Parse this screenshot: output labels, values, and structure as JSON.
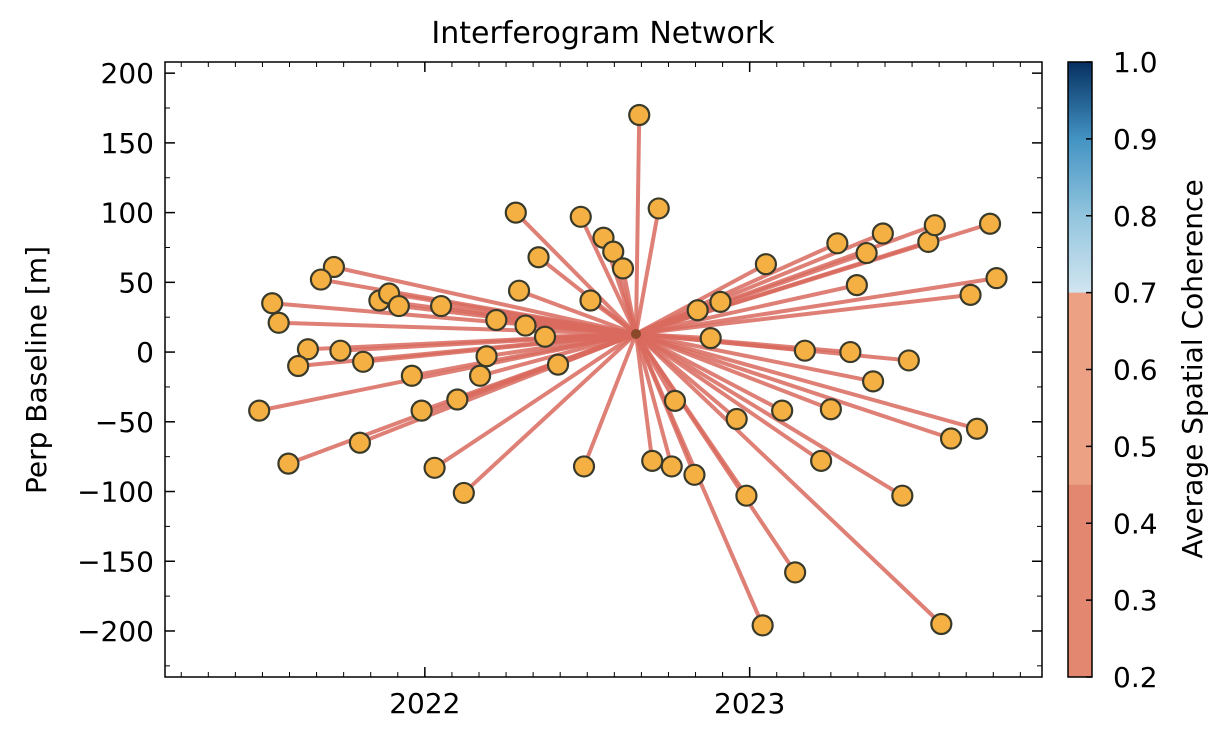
{
  "chart_data": {
    "type": "scatter",
    "title": "Interferogram Network",
    "xlabel": "",
    "ylabel": "Perp Baseline [m]",
    "x_ticks": [
      2022,
      2023
    ],
    "xlim": [
      2021.2,
      2023.9
    ],
    "y_ticks": [
      -200,
      -150,
      -100,
      -50,
      0,
      50,
      100,
      150,
      200
    ],
    "ylim": [
      -233,
      208
    ],
    "grid": false,
    "reference": {
      "x": 2022.65,
      "y": 13
    },
    "colorbar": {
      "label": "Average Spatial Coherence",
      "range": [
        0.2,
        1.0
      ],
      "ticks": [
        "0.2",
        "0.3",
        "0.4",
        "0.5",
        "0.6",
        "0.7",
        "0.8",
        "0.9",
        "1.0"
      ],
      "colormap": "RdBu",
      "masked_above": 0.7
    },
    "edge_color": "#d96a5e",
    "marker_color": "#f4b042",
    "marker_edge_color": "#3a3a2a",
    "points": [
      {
        "x": 2022.66,
        "y": 170
      },
      {
        "x": 2022.28,
        "y": 100
      },
      {
        "x": 2022.48,
        "y": 97
      },
      {
        "x": 2022.72,
        "y": 103
      },
      {
        "x": 2022.55,
        "y": 82
      },
      {
        "x": 2022.58,
        "y": 72
      },
      {
        "x": 2022.61,
        "y": 60
      },
      {
        "x": 2022.35,
        "y": 68
      },
      {
        "x": 2022.29,
        "y": 44
      },
      {
        "x": 2022.51,
        "y": 37
      },
      {
        "x": 2022.22,
        "y": 23
      },
      {
        "x": 2022.31,
        "y": 19
      },
      {
        "x": 2022.37,
        "y": 11
      },
      {
        "x": 2022.19,
        "y": -3
      },
      {
        "x": 2022.41,
        "y": -9
      },
      {
        "x": 2022.17,
        "y": -17
      },
      {
        "x": 2022.1,
        "y": -34
      },
      {
        "x": 2022.49,
        "y": -82
      },
      {
        "x": 2022.03,
        "y": -83
      },
      {
        "x": 2022.12,
        "y": -101
      },
      {
        "x": 2021.72,
        "y": 61
      },
      {
        "x": 2021.68,
        "y": 52
      },
      {
        "x": 2021.53,
        "y": 35
      },
      {
        "x": 2021.55,
        "y": 21
      },
      {
        "x": 2021.86,
        "y": 37
      },
      {
        "x": 2021.89,
        "y": 42
      },
      {
        "x": 2021.92,
        "y": 33
      },
      {
        "x": 2022.05,
        "y": 33
      },
      {
        "x": 2021.64,
        "y": 2
      },
      {
        "x": 2021.61,
        "y": -10
      },
      {
        "x": 2021.74,
        "y": 1
      },
      {
        "x": 2021.81,
        "y": -7
      },
      {
        "x": 2021.96,
        "y": -17
      },
      {
        "x": 2021.99,
        "y": -42
      },
      {
        "x": 2021.49,
        "y": -42
      },
      {
        "x": 2021.8,
        "y": -65
      },
      {
        "x": 2021.58,
        "y": -80
      },
      {
        "x": 2022.77,
        "y": -35
      },
      {
        "x": 2022.7,
        "y": -78
      },
      {
        "x": 2022.76,
        "y": -82
      },
      {
        "x": 2022.83,
        "y": -88
      },
      {
        "x": 2022.99,
        "y": -103
      },
      {
        "x": 2022.96,
        "y": -48
      },
      {
        "x": 2023.04,
        "y": -196
      },
      {
        "x": 2023.14,
        "y": -158
      },
      {
        "x": 2023.1,
        "y": -42
      },
      {
        "x": 2023.22,
        "y": -78
      },
      {
        "x": 2023.25,
        "y": -41
      },
      {
        "x": 2023.47,
        "y": -103
      },
      {
        "x": 2023.59,
        "y": -195
      },
      {
        "x": 2023.62,
        "y": -62
      },
      {
        "x": 2023.7,
        "y": -55
      },
      {
        "x": 2022.88,
        "y": 10
      },
      {
        "x": 2022.84,
        "y": 30
      },
      {
        "x": 2022.91,
        "y": 36
      },
      {
        "x": 2023.05,
        "y": 63
      },
      {
        "x": 2023.17,
        "y": 1
      },
      {
        "x": 2023.31,
        "y": 0
      },
      {
        "x": 2023.38,
        "y": -21
      },
      {
        "x": 2023.49,
        "y": -6
      },
      {
        "x": 2023.33,
        "y": 48
      },
      {
        "x": 2023.27,
        "y": 78
      },
      {
        "x": 2023.36,
        "y": 71
      },
      {
        "x": 2023.41,
        "y": 85
      },
      {
        "x": 2023.55,
        "y": 79
      },
      {
        "x": 2023.57,
        "y": 91
      },
      {
        "x": 2023.68,
        "y": 41
      },
      {
        "x": 2023.76,
        "y": 53
      },
      {
        "x": 2023.74,
        "y": 92
      }
    ]
  }
}
